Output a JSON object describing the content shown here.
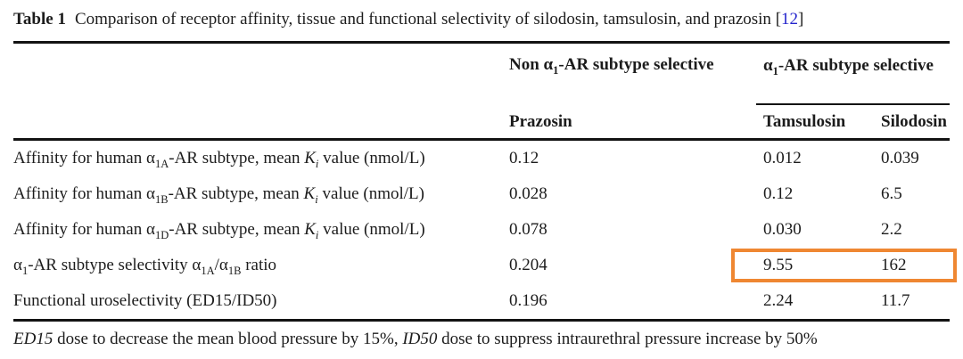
{
  "colors": {
    "background": "#ffffff",
    "text": "#1c1c1c",
    "rule": "#131313",
    "citation_number": "#2323cc",
    "highlight_box": "#ef8732"
  },
  "caption": {
    "label": "Table 1",
    "text": "Comparison of receptor affinity, tissue and functional selectivity of silodosin, tamsulosin, and prazosin",
    "citation": {
      "open": "[",
      "number": "12",
      "close": "]"
    }
  },
  "header": {
    "group_non_selective": [
      {
        "t": "Non "
      },
      {
        "t": "α"
      },
      {
        "t": "1",
        "s": "sub"
      },
      {
        "t": "-AR subtype selective"
      }
    ],
    "group_selective": [
      {
        "t": "α"
      },
      {
        "t": "1",
        "s": "sub"
      },
      {
        "t": "-AR subtype selective"
      }
    ],
    "drug_columns": [
      "Prazosin",
      "Tamsulosin",
      "Silodosin"
    ]
  },
  "rows": [
    {
      "label": [
        {
          "t": "Affinity for human "
        },
        {
          "t": "α"
        },
        {
          "t": "1A",
          "s": "sub"
        },
        {
          "t": "-AR subtype, mean "
        },
        {
          "t": "K",
          "s": "i"
        },
        {
          "t": "i",
          "s": "isub"
        },
        {
          "t": " value (nmol/L)"
        }
      ],
      "values": [
        "0.12",
        "0.012",
        "0.039"
      ]
    },
    {
      "label": [
        {
          "t": "Affinity for human "
        },
        {
          "t": "α"
        },
        {
          "t": "1B",
          "s": "sub"
        },
        {
          "t": "-AR subtype, mean "
        },
        {
          "t": "K",
          "s": "i"
        },
        {
          "t": "i",
          "s": "isub"
        },
        {
          "t": " value (nmol/L)"
        }
      ],
      "values": [
        "0.028",
        "0.12",
        "6.5"
      ]
    },
    {
      "label": [
        {
          "t": "Affinity for human "
        },
        {
          "t": "α"
        },
        {
          "t": "1D",
          "s": "sub"
        },
        {
          "t": "-AR subtype, mean "
        },
        {
          "t": "K",
          "s": "i"
        },
        {
          "t": "i",
          "s": "isub"
        },
        {
          "t": " value (nmol/L)"
        }
      ],
      "values": [
        "0.078",
        "0.030",
        "2.2"
      ]
    },
    {
      "label": [
        {
          "t": "α"
        },
        {
          "t": "1",
          "s": "sub"
        },
        {
          "t": "-AR subtype selectivity "
        },
        {
          "t": "α"
        },
        {
          "t": "1A",
          "s": "sub"
        },
        {
          "t": "/"
        },
        {
          "t": "α"
        },
        {
          "t": "1B",
          "s": "sub"
        },
        {
          "t": " ratio"
        }
      ],
      "values": [
        "0.204",
        "9.55",
        "162"
      ]
    },
    {
      "label": [
        {
          "t": "Functional uroselectivity (ED15/ID50)"
        }
      ],
      "values": [
        "0.196",
        "2.24",
        "11.7"
      ]
    }
  ],
  "highlight_box": {
    "color": "#ef8732",
    "encloses": [
      "9.55",
      "162"
    ]
  },
  "footnote": [
    {
      "t": "ED15",
      "s": "i"
    },
    {
      "t": " dose to decrease the mean blood pressure by 15%, "
    },
    {
      "t": "ID50",
      "s": "i"
    },
    {
      "t": " dose to suppress intraurethral pressure increase by 50%"
    }
  ]
}
